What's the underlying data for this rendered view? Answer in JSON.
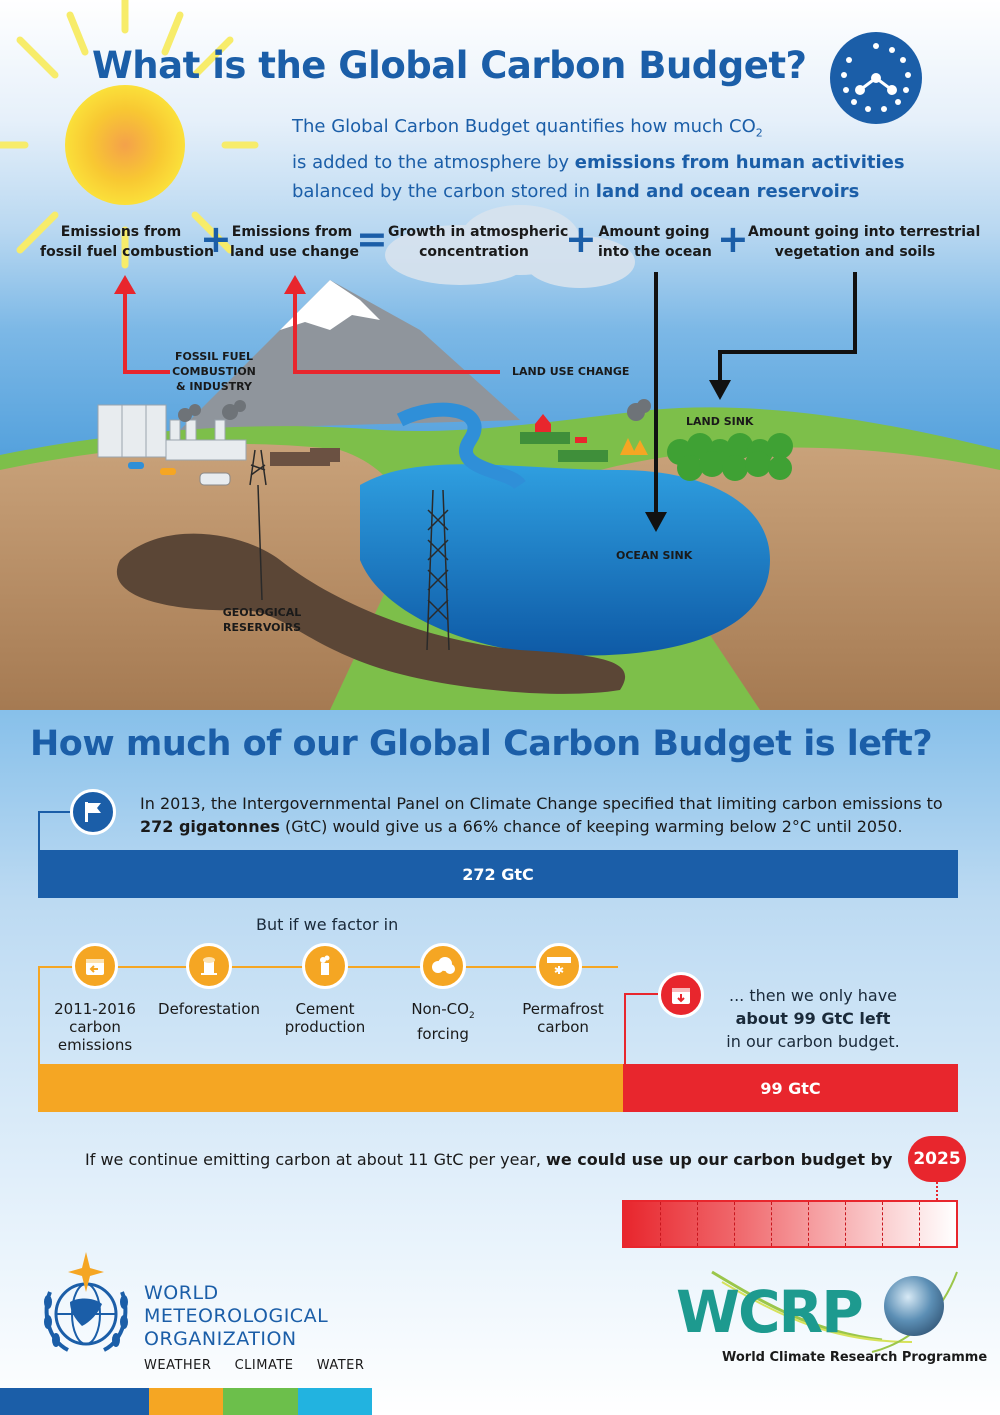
{
  "header": {
    "title": "What is the Global Carbon Budget?",
    "intro_line1_a": "The Global Carbon Budget quantifies how much CO",
    "intro_line1_sub": "2",
    "intro_line2_a": "is added to the atmosphere by ",
    "intro_line2_b": "emissions from human activities",
    "intro_line3_a": "balanced by the carbon stored in ",
    "intro_line3_b": "land and ocean reservoirs"
  },
  "equation": {
    "term1_l1": "Emissions from",
    "term1_l2": "fossil fuel combustion",
    "op1": "+",
    "term2_l1": "Emissions from",
    "term2_l2": "land use change",
    "op2": "=",
    "term3_l1": "Growth in atmospheric",
    "term3_l2": "concentration",
    "op3": "+",
    "term4_l1": "Amount going",
    "term4_l2": "into the ocean",
    "op4": "+",
    "term5_l1": "Amount going into terrestrial",
    "term5_l2": "vegetation and soils"
  },
  "scene": {
    "fossil_l1": "FOSSIL FUEL",
    "fossil_l2": "COMBUSTION",
    "fossil_l3": "& INDUSTRY",
    "land_use": "LAND USE CHANGE",
    "land_sink": "LAND SINK",
    "ocean_sink": "OCEAN SINK",
    "geo_l1": "GEOLOGICAL",
    "geo_l2": "RESERVOIRS"
  },
  "budget": {
    "title": "How much of our Global Carbon Budget is left?",
    "ipcc_a": "In 2013, the Intergovernmental Panel on Climate Change specified that limiting carbon emissions to ",
    "ipcc_b": "272 gigatonnes",
    "ipcc_c": " (GtC) would give us a 66% chance of keeping warming below 2°C until 2050.",
    "bar_total": "272 GtC",
    "factor_in": "But if we factor in",
    "factors": [
      {
        "l1": "2011-2016",
        "l2": "carbon",
        "l3": "emissions"
      },
      {
        "l1": "Deforestation",
        "l2": "",
        "l3": ""
      },
      {
        "l1": "Cement",
        "l2": "production",
        "l3": ""
      },
      {
        "l1": "Non-CO",
        "sub": "2",
        "l2": "forcing",
        "l3": ""
      },
      {
        "l1": "Permafrost",
        "l2": "carbon",
        "l3": ""
      }
    ],
    "left_l1": "... then we only have",
    "left_l2": "about 99 GtC left",
    "left_l3": "in our carbon budget.",
    "bar_left": "99 GtC",
    "remaining_fraction": 0.364,
    "continue_a": "If we continue emitting carbon at about 11 GtC per year, ",
    "continue_b": "we could use up our carbon budget by",
    "year": "2025"
  },
  "footer": {
    "wmo_l1": "WORLD",
    "wmo_l2": "METEOROLOGICAL",
    "wmo_l3": "ORGANIZATION",
    "wmo_tag1": "WEATHER",
    "wmo_tag2": "CLIMATE",
    "wmo_tag3": "WATER",
    "wcrp": "WCRP",
    "wcrp_full": "World Climate Research Programme"
  },
  "colors": {
    "brand_blue": "#1b5ea8",
    "orange": "#f5a623",
    "red": "#e8262d",
    "green": "#6cbf4b",
    "cyan": "#22b3e0"
  }
}
